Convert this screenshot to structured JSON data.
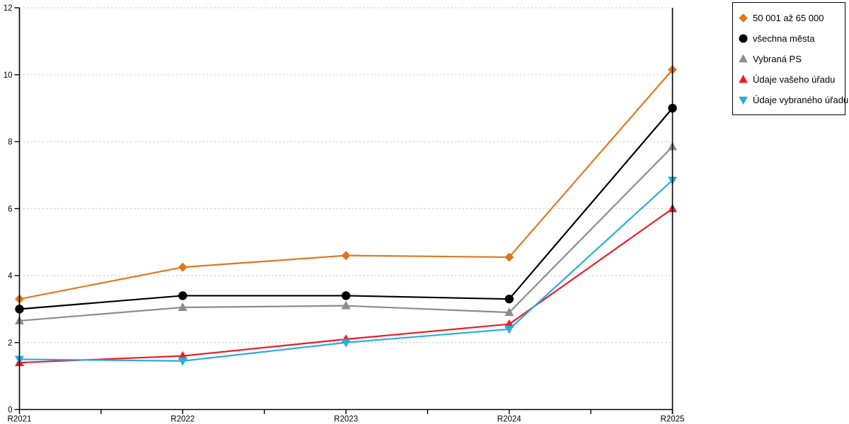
{
  "chart_data": {
    "type": "line",
    "x": [
      "R2021",
      "R2022",
      "R2023",
      "R2024",
      "R2025"
    ],
    "series": [
      {
        "name": "50 001 až 65 000",
        "marker": "diamond",
        "color": "#E0771D",
        "values": [
          3.3,
          4.25,
          4.6,
          4.55,
          10.15
        ]
      },
      {
        "name": "všechna města",
        "marker": "circle",
        "color": "#000000",
        "values": [
          3.0,
          3.4,
          3.4,
          3.3,
          9.0
        ]
      },
      {
        "name": "Vybraná PS",
        "marker": "triangle-up",
        "color": "#8C8C8C",
        "values": [
          2.65,
          3.05,
          3.1,
          2.9,
          7.85
        ]
      },
      {
        "name": "Údaje vašeho úřadu",
        "marker": "triangle-up",
        "color": "#ED1C24",
        "values": [
          1.4,
          1.6,
          2.1,
          2.55,
          6.0
        ]
      },
      {
        "name": "Údaje vybraného úřadu",
        "marker": "triangle-down",
        "color": "#29ABE2",
        "values": [
          1.5,
          1.45,
          2.0,
          2.4,
          6.85
        ]
      }
    ],
    "ylim": [
      0,
      12
    ],
    "y_ticks": [
      "0",
      "2",
      "4",
      "6",
      "8",
      "10",
      "12"
    ],
    "grid": "horizontal-dotted",
    "gridline_color": "#C9C9C9",
    "axis_color": "#000000",
    "legend_position": "top-right",
    "title": "",
    "xlabel": "",
    "ylabel": ""
  }
}
